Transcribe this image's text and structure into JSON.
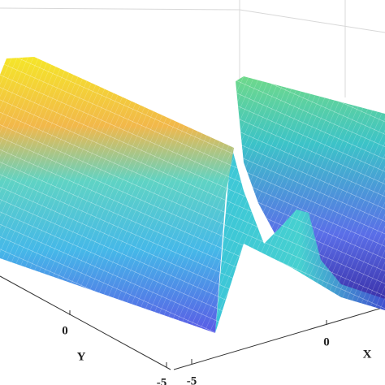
{
  "chart_data": {
    "type": "surface",
    "xlabel": "X",
    "ylabel": "Y",
    "xticks": [
      -5,
      0
    ],
    "yticks": [
      -5,
      0
    ]
  }
}
